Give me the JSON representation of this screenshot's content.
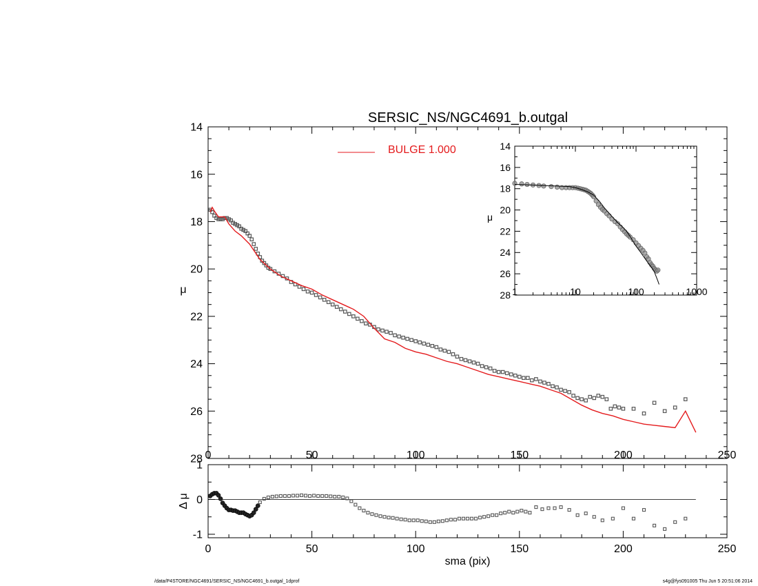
{
  "title": "SERSIC_NS/NGC4691_b.outgal",
  "footer": {
    "left": "/data/P4STORE/NGC4691/SERSIC_NS/NGC4691_b.outgal_1dprof",
    "right": "s4g@fys091005  Thu Jun  5 20:51:06 2014"
  },
  "colors": {
    "model": "#e41a1c",
    "data": "#555555",
    "axes": "#000000"
  },
  "chart_data": [
    {
      "type": "scatter",
      "panel": "main",
      "xlabel": "sma (pix)",
      "ylabel": "μ",
      "xlim": [
        0,
        250
      ],
      "ylim": [
        28,
        14
      ],
      "x_ticks": [
        "0",
        "50",
        "100",
        "150",
        "200",
        "250"
      ],
      "y_ticks": [
        "14",
        "16",
        "18",
        "20",
        "22",
        "24",
        "26",
        "28"
      ],
      "legend": {
        "label": "BULGE  1.000",
        "position": "top-center"
      },
      "series": [
        {
          "name": "BULGE  1.000",
          "kind": "line",
          "x": [
            1,
            2,
            3,
            5,
            8,
            10,
            13,
            16,
            20,
            25,
            30,
            35,
            40,
            45,
            50,
            55,
            60,
            65,
            70,
            75,
            80,
            85,
            90,
            95,
            100,
            105,
            110,
            115,
            120,
            125,
            130,
            135,
            140,
            145,
            150,
            155,
            160,
            165,
            170,
            175,
            180,
            185,
            190,
            195,
            200,
            205,
            210,
            215,
            220,
            225,
            230,
            235
          ],
          "y": [
            17.6,
            17.4,
            17.55,
            17.8,
            17.8,
            18.1,
            18.4,
            18.6,
            18.95,
            19.6,
            20.0,
            20.3,
            20.5,
            20.7,
            20.85,
            21.1,
            21.3,
            21.5,
            21.7,
            22.0,
            22.5,
            22.95,
            23.1,
            23.35,
            23.5,
            23.6,
            23.75,
            23.9,
            24.0,
            24.15,
            24.3,
            24.45,
            24.55,
            24.65,
            24.75,
            24.85,
            24.95,
            25.1,
            25.25,
            25.5,
            25.75,
            25.95,
            26.1,
            26.2,
            26.35,
            26.45,
            26.55,
            26.6,
            26.65,
            26.7,
            26.0,
            26.9
          ]
        },
        {
          "name": "",
          "kind": "points",
          "x": [
            1,
            2,
            3,
            4,
            5,
            6,
            7,
            8,
            9,
            10,
            11,
            12,
            13,
            14,
            15,
            16,
            17,
            18,
            19,
            20,
            21,
            22,
            23,
            24,
            25,
            26,
            27,
            28,
            29,
            30,
            32,
            34,
            36,
            38,
            40,
            42,
            44,
            46,
            48,
            50,
            52,
            54,
            56,
            58,
            60,
            62,
            64,
            66,
            68,
            70,
            72,
            74,
            76,
            78,
            80,
            82,
            84,
            86,
            88,
            90,
            92,
            94,
            96,
            98,
            100,
            102,
            104,
            106,
            108,
            110,
            112,
            114,
            116,
            118,
            120,
            122,
            124,
            126,
            128,
            130,
            132,
            134,
            136,
            138,
            140,
            142,
            144,
            146,
            148,
            150,
            152,
            154,
            156,
            158,
            160,
            162,
            164,
            166,
            168,
            170,
            172,
            174,
            176,
            178,
            180,
            182,
            184,
            186,
            188,
            190,
            192,
            194,
            196,
            198,
            200,
            205,
            210,
            215,
            220,
            225,
            230
          ],
          "y": [
            17.5,
            17.6,
            17.75,
            17.85,
            17.9,
            17.9,
            17.9,
            17.85,
            17.85,
            17.9,
            17.95,
            18.05,
            18.1,
            18.15,
            18.2,
            18.3,
            18.35,
            18.4,
            18.5,
            18.6,
            18.75,
            18.95,
            19.15,
            19.35,
            19.5,
            19.65,
            19.75,
            19.85,
            19.95,
            20.0,
            20.1,
            20.2,
            20.3,
            20.4,
            20.55,
            20.65,
            20.75,
            20.85,
            20.95,
            21.0,
            21.1,
            21.2,
            21.3,
            21.4,
            21.5,
            21.6,
            21.7,
            21.8,
            21.9,
            22.0,
            22.1,
            22.2,
            22.3,
            22.35,
            22.45,
            22.55,
            22.6,
            22.65,
            22.7,
            22.8,
            22.85,
            22.9,
            22.95,
            23.0,
            23.05,
            23.1,
            23.15,
            23.2,
            23.25,
            23.3,
            23.4,
            23.45,
            23.5,
            23.6,
            23.7,
            23.8,
            23.85,
            23.9,
            23.95,
            24.0,
            24.1,
            24.15,
            24.2,
            24.3,
            24.35,
            24.35,
            24.4,
            24.45,
            24.5,
            24.55,
            24.6,
            24.6,
            24.7,
            24.65,
            24.75,
            24.8,
            24.85,
            24.95,
            25.0,
            25.1,
            25.15,
            25.2,
            25.35,
            25.45,
            25.5,
            25.55,
            25.4,
            25.45,
            25.35,
            25.4,
            25.5,
            25.9,
            25.8,
            25.85,
            25.9,
            25.9,
            26.1,
            25.65,
            26.0,
            25.85,
            25.5
          ]
        }
      ]
    },
    {
      "type": "scatter",
      "panel": "inset",
      "xlabel": "sma (pix)",
      "ylabel": "μ",
      "xscale": "log",
      "xlim": [
        1,
        1000
      ],
      "ylim": [
        28,
        14
      ],
      "x_ticks": [
        "1",
        "10",
        "100",
        "1000"
      ],
      "y_ticks": [
        "14",
        "16",
        "18",
        "20",
        "22",
        "24",
        "26",
        "28"
      ],
      "series": [
        {
          "name": "",
          "kind": "line",
          "x": [
            1,
            2,
            3,
            5,
            8,
            10,
            13,
            16,
            20,
            25,
            30,
            40,
            50,
            60,
            70,
            80,
            100,
            120,
            150,
            180,
            200,
            230,
            240
          ],
          "y": [
            17.6,
            17.65,
            17.7,
            17.75,
            17.8,
            17.9,
            18.1,
            18.3,
            18.6,
            19.2,
            19.8,
            20.6,
            21.2,
            21.6,
            22.0,
            22.5,
            23.4,
            24.0,
            24.8,
            25.4,
            25.8,
            26.7,
            27.0
          ]
        },
        {
          "name": "",
          "kind": "points",
          "x": [
            1,
            1.3,
            1.6,
            2,
            2.5,
            3,
            4,
            5,
            6,
            7,
            8,
            9,
            10,
            11,
            12,
            13,
            14,
            15,
            16,
            17,
            18,
            19,
            20,
            22,
            24,
            26,
            28,
            30,
            33,
            36,
            40,
            45,
            50,
            55,
            60,
            65,
            70,
            75,
            80,
            90,
            100,
            110,
            120,
            130,
            140,
            150,
            160,
            170,
            180,
            190,
            200,
            210,
            220,
            230
          ],
          "y": [
            17.5,
            17.55,
            17.6,
            17.65,
            17.7,
            17.75,
            17.8,
            17.85,
            17.9,
            17.9,
            17.9,
            17.9,
            17.9,
            17.95,
            18.0,
            18.05,
            18.1,
            18.15,
            18.25,
            18.35,
            18.45,
            18.6,
            18.75,
            19.15,
            19.5,
            19.75,
            19.95,
            20.1,
            20.35,
            20.55,
            20.85,
            21.1,
            21.3,
            21.6,
            21.85,
            22.05,
            22.25,
            22.4,
            22.55,
            22.8,
            23.1,
            23.35,
            23.6,
            23.8,
            24.05,
            24.4,
            24.6,
            24.95,
            25.15,
            25.3,
            25.5,
            25.65,
            25.75,
            25.65
          ]
        }
      ]
    },
    {
      "type": "scatter",
      "panel": "residual",
      "xlabel": "sma (pix)",
      "ylabel": "Δ μ",
      "xlim": [
        0,
        250
      ],
      "ylim": [
        -1.1,
        1.0
      ],
      "x_ticks": [
        "0",
        "50",
        "100",
        "150",
        "200",
        "250"
      ],
      "y_ticks": [
        "1",
        "0",
        "-1"
      ],
      "series": [
        {
          "name": "",
          "kind": "points",
          "x": [
            1,
            2,
            3,
            4,
            5,
            6,
            7,
            8,
            9,
            10,
            11,
            12,
            13,
            14,
            15,
            16,
            17,
            18,
            19,
            20,
            21,
            22,
            23,
            24,
            25,
            27,
            29,
            31,
            33,
            35,
            37,
            39,
            41,
            43,
            45,
            47,
            49,
            51,
            53,
            55,
            57,
            59,
            61,
            63,
            65,
            67,
            69,
            71,
            73,
            75,
            77,
            79,
            81,
            83,
            85,
            87,
            89,
            91,
            93,
            95,
            97,
            99,
            101,
            103,
            105,
            107,
            109,
            111,
            113,
            115,
            117,
            119,
            121,
            123,
            125,
            127,
            129,
            131,
            133,
            135,
            137,
            139,
            141,
            143,
            145,
            147,
            149,
            151,
            153,
            155,
            158,
            161,
            164,
            167,
            170,
            174,
            178,
            182,
            186,
            190,
            195,
            200,
            205,
            210,
            215,
            220,
            225,
            230
          ],
          "y": [
            0.1,
            0.15,
            0.18,
            0.18,
            0.12,
            0.02,
            -0.1,
            -0.18,
            -0.25,
            -0.3,
            -0.3,
            -0.32,
            -0.32,
            -0.35,
            -0.38,
            -0.38,
            -0.38,
            -0.42,
            -0.45,
            -0.48,
            -0.45,
            -0.38,
            -0.28,
            -0.18,
            -0.08,
            0.02,
            0.06,
            0.08,
            0.09,
            0.1,
            0.1,
            0.1,
            0.11,
            0.11,
            0.12,
            0.11,
            0.1,
            0.11,
            0.1,
            0.1,
            0.1,
            0.09,
            0.08,
            0.08,
            0.06,
            0.03,
            -0.05,
            -0.15,
            -0.25,
            -0.32,
            -0.38,
            -0.42,
            -0.45,
            -0.48,
            -0.5,
            -0.52,
            -0.53,
            -0.55,
            -0.57,
            -0.58,
            -0.6,
            -0.6,
            -0.6,
            -0.62,
            -0.63,
            -0.65,
            -0.65,
            -0.63,
            -0.62,
            -0.6,
            -0.58,
            -0.58,
            -0.55,
            -0.55,
            -0.55,
            -0.55,
            -0.55,
            -0.52,
            -0.5,
            -0.48,
            -0.45,
            -0.45,
            -0.4,
            -0.38,
            -0.35,
            -0.38,
            -0.35,
            -0.32,
            -0.35,
            -0.38,
            -0.22,
            -0.28,
            -0.25,
            -0.25,
            -0.22,
            -0.3,
            -0.45,
            -0.4,
            -0.5,
            -0.6,
            -0.55,
            -0.25,
            -0.55,
            -0.3,
            -0.75,
            -0.85,
            -0.65,
            -0.55
          ]
        }
      ]
    }
  ]
}
